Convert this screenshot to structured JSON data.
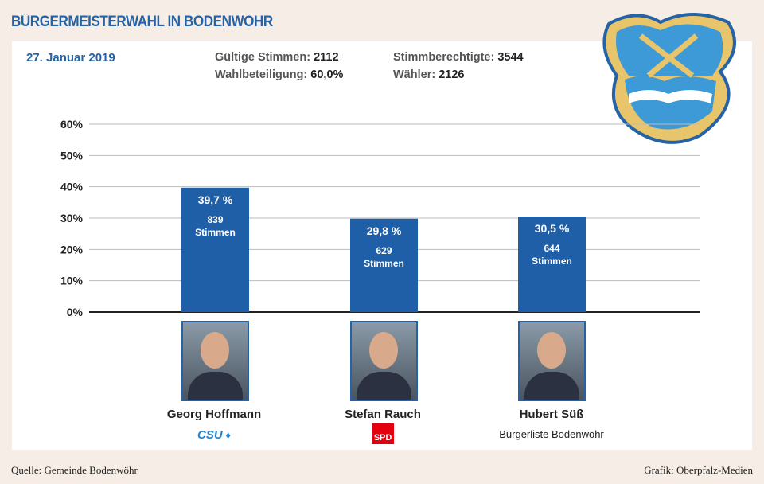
{
  "title": "BÜRGERMEISTERWAHL IN BODENWÖHR",
  "date": "27. Januar 2019",
  "stats": [
    {
      "label": "Gültige Stimmen:",
      "value": "2112"
    },
    {
      "label": "Wahlbeteiligung:",
      "value": "60,0%"
    },
    {
      "label": "Stimmberechtigte:",
      "value": "3544"
    },
    {
      "label": "Wähler:",
      "value": "2126"
    }
  ],
  "colors": {
    "bar": "#1f5fa8",
    "title": "#2563a6"
  },
  "chart_data": {
    "type": "bar",
    "categories": [
      "Georg Hoffmann",
      "Stefan Rauch",
      "Hubert Süß"
    ],
    "values": [
      39.7,
      29.8,
      30.5
    ],
    "value_labels": [
      "39,7 %",
      "29,8 %",
      "30,5 %"
    ],
    "votes": [
      "839",
      "629",
      "644"
    ],
    "votes_unit": "Stimmen",
    "ylim": [
      0,
      60
    ],
    "yticks": [
      "0%",
      "10%",
      "20%",
      "30%",
      "40%",
      "50%",
      "60%"
    ],
    "grid": true
  },
  "candidates": [
    {
      "name": "Georg Hoffmann",
      "party": "CSU"
    },
    {
      "name": "Stefan Rauch",
      "party": "SPD"
    },
    {
      "name": "Hubert Süß",
      "party": "Bürgerliste Bodenwöhr"
    }
  ],
  "footer": {
    "source": "Quelle: Gemeinde Bodenwöhr",
    "credit": "Grafik: Oberpfalz-Medien"
  }
}
